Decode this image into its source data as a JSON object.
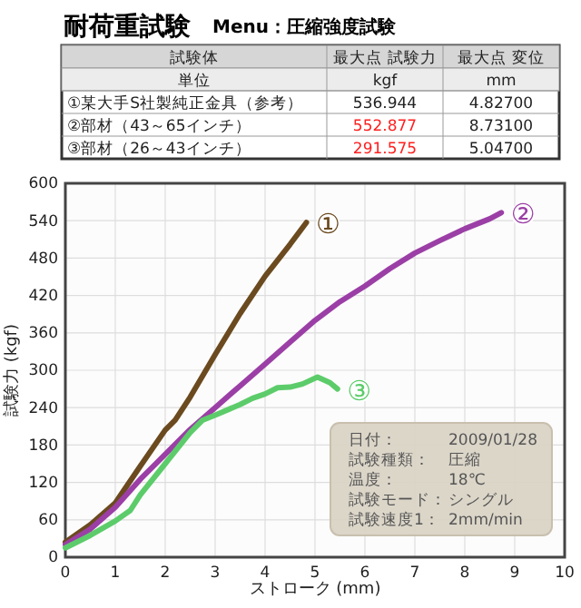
{
  "chart_data": {
    "type": "line",
    "title": "耐荷重試験",
    "subtitle": "Menu：圧縮強度試験",
    "xlabel": "ストローク (mm)",
    "ylabel": "試験力 (kgf)",
    "xlim": [
      0,
      10
    ],
    "xticks": [
      0,
      1,
      2,
      3,
      4,
      5,
      6,
      7,
      8,
      9,
      10
    ],
    "ylim": [
      0,
      600
    ],
    "yticks": [
      0,
      60,
      120,
      180,
      240,
      300,
      360,
      420,
      480,
      540,
      600
    ],
    "grid": true,
    "line_style": "solid",
    "marker": "none",
    "series": [
      {
        "name": "①",
        "color": "#6b4a1f",
        "x": [
          0,
          0.5,
          1,
          1.5,
          2,
          2.2,
          2.5,
          3,
          3.5,
          4,
          4.5,
          4.827
        ],
        "values": [
          24,
          52,
          87,
          146,
          204,
          220,
          257,
          325,
          391,
          451,
          502,
          537
        ]
      },
      {
        "name": "②",
        "color": "#9b3fa6",
        "x": [
          0,
          0.5,
          1,
          1.5,
          2,
          2.5,
          3,
          3.5,
          4,
          4.5,
          5,
          5.5,
          6,
          6.5,
          7,
          7.5,
          8,
          8.5,
          8.731
        ],
        "values": [
          20,
          45,
          80,
          125,
          165,
          205,
          240,
          275,
          310,
          345,
          380,
          410,
          435,
          463,
          488,
          508,
          527,
          543,
          553
        ]
      },
      {
        "name": "③",
        "color": "#5ccc6a",
        "x": [
          0,
          0.5,
          1,
          1.3,
          1.5,
          2,
          2.5,
          2.75,
          3,
          3.5,
          3.75,
          4,
          4.25,
          4.5,
          4.75,
          5.05,
          5.3,
          5.45
        ],
        "values": [
          15,
          35,
          58,
          75,
          100,
          150,
          200,
          220,
          228,
          245,
          255,
          262,
          272,
          273,
          278,
          289,
          280,
          270
        ]
      }
    ],
    "annotations": [
      "試験体",
      "最大点 試験力",
      "最大点 変位",
      "単位",
      "kgf",
      "mm",
      "①某大手S社製純正金具（参考）",
      "536.944",
      "4.82700",
      "②部材（43～65インチ）",
      "552.877",
      "8.73100",
      "③部材（26～43インチ）",
      "291.575",
      "5.04700",
      "日付：",
      "2009/01/28",
      "試験種類：",
      "圧縮",
      "温度：",
      "18℃",
      "試験モード：",
      "シングル",
      "試験速度1：",
      "2mm/min"
    ]
  }
}
